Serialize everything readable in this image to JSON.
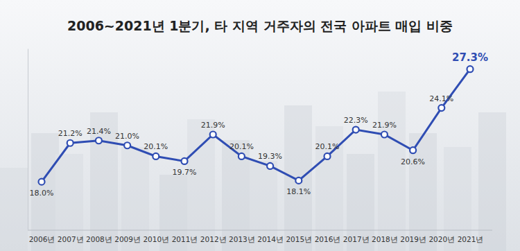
{
  "chart_data": {
    "type": "line",
    "title": "2006~2021년 1분기, 타 지역 거주자의 전국 아파트 매입 비중",
    "categories": [
      "2006년",
      "2007년",
      "2008년",
      "2009년",
      "2010년",
      "2011년",
      "2012년",
      "2013년",
      "2014년",
      "2015년",
      "2016년",
      "2017년",
      "2018년",
      "2019년",
      "2020년",
      "2021년"
    ],
    "values": [
      18.0,
      21.2,
      21.4,
      21.0,
      20.1,
      19.7,
      21.9,
      20.1,
      19.3,
      18.1,
      20.1,
      22.3,
      21.9,
      20.6,
      24.1,
      27.3
    ],
    "value_labels": [
      "18.0%",
      "21.2%",
      "21.4%",
      "21.0%",
      "20.1%",
      "19.7%",
      "21.9%",
      "20.1%",
      "19.3%",
      "18.1%",
      "20.1%",
      "22.3%",
      "21.9%",
      "20.6%",
      "24.1%",
      "27.3%"
    ],
    "color": "#2f4db3",
    "ylim": [
      14,
      29
    ],
    "yticks": [],
    "grid": false,
    "data_labels": true,
    "tick_labels": "x",
    "marker": "circle",
    "line_style": "solid"
  }
}
